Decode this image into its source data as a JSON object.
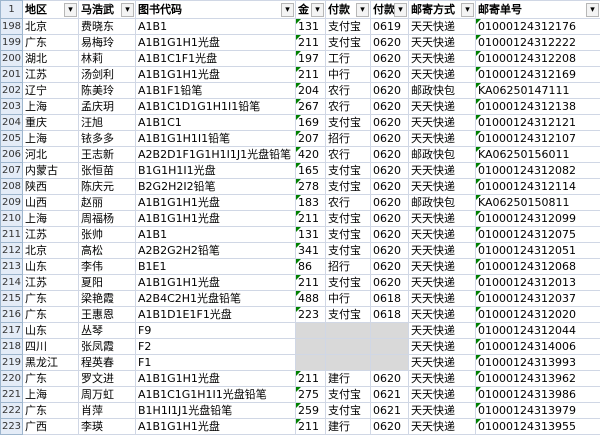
{
  "header": {
    "row_number": 1,
    "columns": [
      "地区",
      "马浩武",
      "图书代码",
      "金",
      "付款",
      "付款",
      "邮寄方式",
      "邮寄单号"
    ]
  },
  "rows": [
    {
      "row": 198,
      "region": "北京",
      "name": "费晓东",
      "code": "A1B1",
      "amount": 131,
      "payment": "支付宝",
      "date": "0619",
      "shipping": "天天快递",
      "tracking": "01000124312176"
    },
    {
      "row": 199,
      "region": "广东",
      "name": "易梅玲",
      "code": "A1B1G1H1光盘",
      "amount": 211,
      "payment": "支付宝",
      "date": "0620",
      "shipping": "天天快递",
      "tracking": "01000124312222"
    },
    {
      "row": 200,
      "region": "湖北",
      "name": "林莉",
      "code": "A1B1C1F1光盘",
      "amount": 197,
      "payment": "工行",
      "date": "0620",
      "shipping": "天天快递",
      "tracking": "01000124312208"
    },
    {
      "row": 201,
      "region": "江苏",
      "name": "汤剑利",
      "code": "A1B1G1H1光盘",
      "amount": 211,
      "payment": "中行",
      "date": "0620",
      "shipping": "天天快递",
      "tracking": "01000124312169"
    },
    {
      "row": 202,
      "region": "辽宁",
      "name": "陈美玲",
      "code": "A1B1F1铅笔",
      "amount": 204,
      "payment": "农行",
      "date": "0620",
      "shipping": "邮政快包",
      "tracking": "KA06250147111"
    },
    {
      "row": 203,
      "region": "上海",
      "name": "孟庆玥",
      "code": "A1B1C1D1G1H1I1铅笔",
      "amount": 267,
      "payment": "农行",
      "date": "0620",
      "shipping": "天天快递",
      "tracking": "01000124312138"
    },
    {
      "row": 204,
      "region": "重庆",
      "name": "汪旭",
      "code": "A1B1C1",
      "amount": 169,
      "payment": "支付宝",
      "date": "0620",
      "shipping": "天天快递",
      "tracking": "01000124312121"
    },
    {
      "row": 205,
      "region": "上海",
      "name": "铱多多",
      "code": "A1B1G1H1I1铅笔",
      "amount": 207,
      "payment": "招行",
      "date": "0620",
      "shipping": "天天快递",
      "tracking": "01000124312107"
    },
    {
      "row": 206,
      "region": "河北",
      "name": "王志新",
      "code": "A2B2D1F1G1H1I1J1光盘铅笔",
      "amount": 420,
      "payment": "农行",
      "date": "0620",
      "shipping": "邮政快包",
      "tracking": "KA06250156011"
    },
    {
      "row": 207,
      "region": "内蒙古",
      "name": "张恒苗",
      "code": "B1G1H1I1光盘",
      "amount": 165,
      "payment": "支付宝",
      "date": "0620",
      "shipping": "天天快递",
      "tracking": "01000124312082"
    },
    {
      "row": 208,
      "region": "陕西",
      "name": "陈庆元",
      "code": "B2G2H2I2铅笔",
      "amount": 278,
      "payment": "支付宝",
      "date": "0620",
      "shipping": "天天快递",
      "tracking": "01000124312114"
    },
    {
      "row": 209,
      "region": "山西",
      "name": "赵丽",
      "code": "A1B1G1H1光盘",
      "amount": 183,
      "payment": "农行",
      "date": "0620",
      "shipping": "邮政快包",
      "tracking": "KA06250150811"
    },
    {
      "row": 210,
      "region": "上海",
      "name": "周福杨",
      "code": "A1B1G1H1光盘",
      "amount": 211,
      "payment": "支付宝",
      "date": "0620",
      "shipping": "天天快递",
      "tracking": "01000124312099"
    },
    {
      "row": 211,
      "region": "江苏",
      "name": "张帅",
      "code": "A1B1",
      "amount": 131,
      "payment": "支付宝",
      "date": "0620",
      "shipping": "天天快递",
      "tracking": "01000124312075"
    },
    {
      "row": 212,
      "region": "北京",
      "name": "高松",
      "code": "A2B2G2H2铅笔",
      "amount": 341,
      "payment": "支付宝",
      "date": "0620",
      "shipping": "天天快递",
      "tracking": "01000124312051"
    },
    {
      "row": 213,
      "region": "山东",
      "name": "李伟",
      "code": "B1E1",
      "amount": 86,
      "payment": "招行",
      "date": "0620",
      "shipping": "天天快递",
      "tracking": "01000124312068"
    },
    {
      "row": 214,
      "region": "江苏",
      "name": "夏阳",
      "code": "A1B1G1H1光盘",
      "amount": 211,
      "payment": "支付宝",
      "date": "0620",
      "shipping": "天天快递",
      "tracking": "01000124312013"
    },
    {
      "row": 215,
      "region": "广东",
      "name": "梁艳霞",
      "code": "A2B4C2H1光盘铅笔",
      "amount": 488,
      "payment": "中行",
      "date": "0618",
      "shipping": "天天快递",
      "tracking": "01000124312037"
    },
    {
      "row": 216,
      "region": "广东",
      "name": "王惠恩",
      "code": "A1B1D1E1F1光盘",
      "amount": 223,
      "payment": "支付宝",
      "date": "0618",
      "shipping": "天天快递",
      "tracking": "01000124312020"
    },
    {
      "row": 217,
      "region": "山东",
      "name": "丛琴",
      "code": "F9",
      "shipping": "天天快递",
      "tracking": "01000124312044"
    },
    {
      "row": 218,
      "region": "四川",
      "name": "张凤霞",
      "code": "F2",
      "shipping": "天天快递",
      "tracking": "01000124314006"
    },
    {
      "row": 219,
      "region": "黑龙江",
      "name": "程英春",
      "code": "F1",
      "shipping": "天天快递",
      "tracking": "01000124313993"
    },
    {
      "row": 220,
      "region": "广东",
      "name": "罗文进",
      "code": "A1B1G1H1光盘",
      "amount": 211,
      "payment": "建行",
      "date": "0620",
      "shipping": "天天快递",
      "tracking": "01000124313962"
    },
    {
      "row": 221,
      "region": "上海",
      "name": "周万虹",
      "code": "A1B1C1G1H1I1光盘铅笔",
      "amount": 275,
      "payment": "支付宝",
      "date": "0621",
      "shipping": "天天快递",
      "tracking": "01000124313986"
    },
    {
      "row": 222,
      "region": "广东",
      "name": "肖萍",
      "code": "B1H1I1J1光盘铅笔",
      "amount": 259,
      "payment": "支付宝",
      "date": "0621",
      "shipping": "天天快递",
      "tracking": "01000124313979"
    },
    {
      "row": 223,
      "region": "广西",
      "name": "李瑛",
      "code": "A1B1G1H1光盘",
      "amount": 211,
      "payment": "建行",
      "date": "0620",
      "shipping": "天天快递",
      "tracking": "01000124313955"
    }
  ]
}
